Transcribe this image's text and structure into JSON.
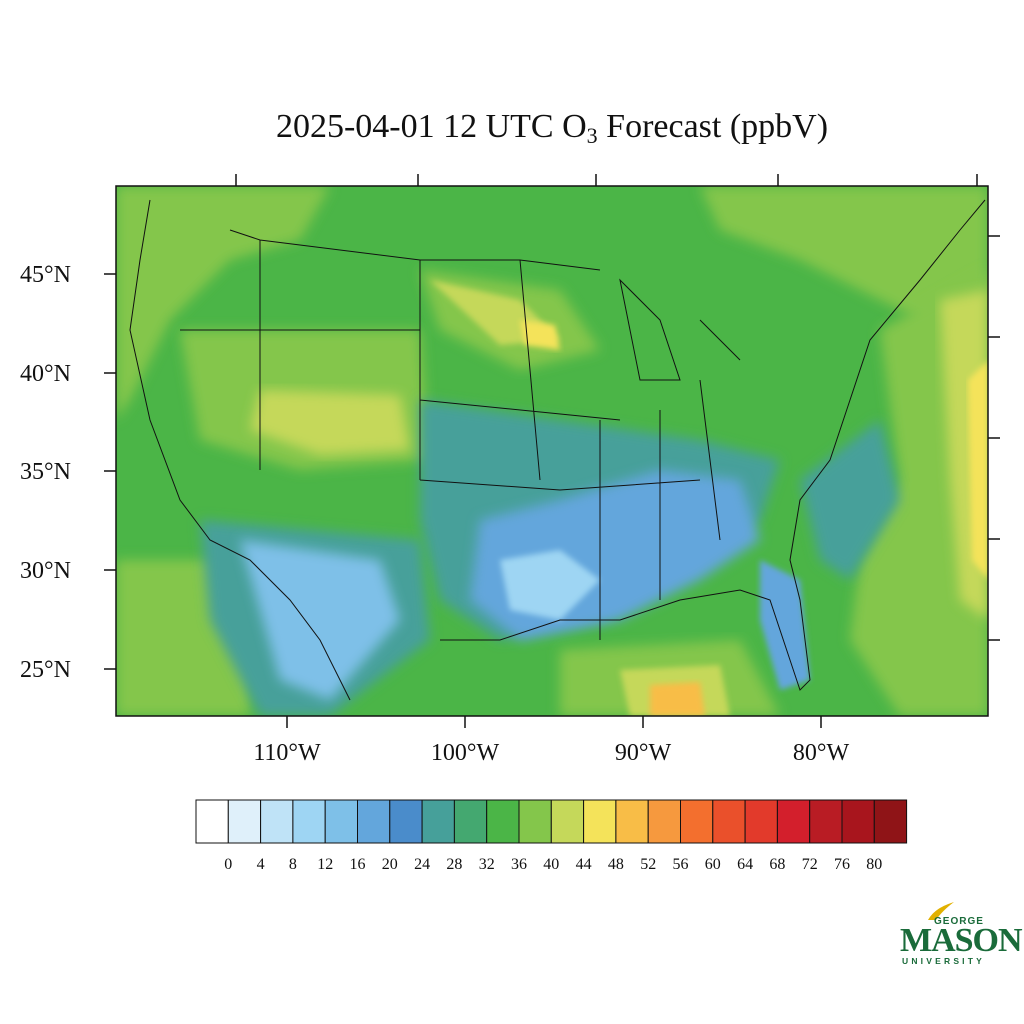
{
  "title": {
    "prefix": "2025-04-01 12 UTC O",
    "subscript": "3",
    "suffix": " Forecast (ppbV)"
  },
  "map": {
    "region": "Contiguous United States",
    "lat_labels": [
      "45°N",
      "40°N",
      "35°N",
      "30°N",
      "25°N"
    ],
    "lon_labels": [
      "110°W",
      "100°W",
      "90°W",
      "80°W"
    ],
    "features": [
      {
        "name": "Ozone maximum, central Plains",
        "range": "44-48"
      },
      {
        "name": "Ozone maximum, central Gulf of Mexico",
        "range": "48-52"
      },
      {
        "name": "Ozone minimum, Gulf Coast and Southeast",
        "range": "12-24"
      }
    ]
  },
  "colorbar": {
    "labels": [
      "0",
      "4",
      "8",
      "12",
      "16",
      "20",
      "24",
      "28",
      "32",
      "36",
      "40",
      "44",
      "48",
      "52",
      "56",
      "60",
      "64",
      "68",
      "72",
      "76",
      "80"
    ],
    "colors": [
      "#ffffff",
      "#dff0fa",
      "#bfe3f7",
      "#9ed5f3",
      "#7ec0e8",
      "#63a6dc",
      "#4a8ccb",
      "#46a09a",
      "#44a870",
      "#4bb547",
      "#84c64b",
      "#c5d85a",
      "#f4e35a",
      "#f8bd47",
      "#f6993e",
      "#f36f2e",
      "#ea502b",
      "#e23a2b",
      "#d31f2c",
      "#b91c24",
      "#a8151d",
      "#8f1417"
    ]
  },
  "logo": {
    "line1": "GEORGE",
    "line2": "MASON",
    "line3": "UNIVERSITY"
  }
}
